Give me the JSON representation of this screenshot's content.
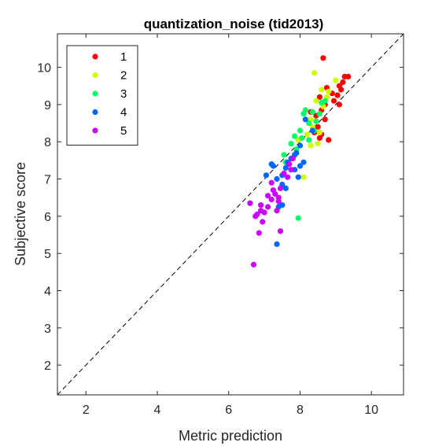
{
  "chart_data": {
    "type": "scatter",
    "title": "quantization_noise (tid2013)",
    "xlabel": "Metric prediction",
    "ylabel": "Subjective score",
    "xlim": [
      1.2,
      10.9
    ],
    "ylim": [
      1.2,
      10.9
    ],
    "xticks": [
      2,
      4,
      6,
      8,
      10
    ],
    "yticks": [
      2,
      3,
      4,
      5,
      6,
      7,
      8,
      9,
      10
    ],
    "grid": false,
    "legend_position": "top-left",
    "reference_line": "y = x (dashed)",
    "series": [
      {
        "name": "1",
        "color": "#ff0000",
        "points": [
          [
            8.65,
            10.25
          ],
          [
            9.25,
            9.75
          ],
          [
            9.35,
            9.75
          ],
          [
            9.2,
            9.6
          ],
          [
            9.1,
            9.5
          ],
          [
            9.15,
            9.4
          ],
          [
            8.75,
            9.45
          ],
          [
            8.9,
            9.3
          ],
          [
            9.05,
            9.25
          ],
          [
            8.55,
            9.2
          ],
          [
            8.95,
            9.1
          ],
          [
            8.7,
            9.0
          ],
          [
            9.1,
            9.0
          ],
          [
            8.6,
            8.85
          ],
          [
            8.3,
            8.8
          ],
          [
            8.45,
            8.7
          ],
          [
            8.7,
            8.6
          ],
          [
            8.5,
            8.4
          ],
          [
            8.4,
            8.25
          ],
          [
            8.55,
            8.1
          ],
          [
            8.8,
            8.05
          ],
          [
            8.6,
            8.2
          ]
        ]
      },
      {
        "name": "2",
        "color": "#ccff00",
        "points": [
          [
            8.4,
            9.85
          ],
          [
            9.0,
            9.65
          ],
          [
            8.6,
            9.4
          ],
          [
            8.8,
            9.35
          ],
          [
            8.45,
            9.1
          ],
          [
            8.75,
            9.2
          ],
          [
            8.3,
            8.6
          ],
          [
            8.35,
            8.4
          ],
          [
            8.2,
            8.2
          ],
          [
            8.5,
            7.95
          ],
          [
            8.3,
            7.9
          ],
          [
            7.95,
            8.05
          ],
          [
            8.1,
            7.05
          ],
          [
            8.55,
            8.25
          ],
          [
            8.65,
            8.95
          ]
        ]
      },
      {
        "name": "3",
        "color": "#00ff66",
        "points": [
          [
            8.6,
            9.05
          ],
          [
            8.7,
            9.1
          ],
          [
            8.55,
            8.75
          ],
          [
            8.1,
            8.75
          ],
          [
            8.45,
            8.55
          ],
          [
            8.25,
            8.5
          ],
          [
            8.0,
            8.3
          ],
          [
            7.85,
            8.15
          ],
          [
            8.25,
            8.05
          ],
          [
            8.4,
            8.3
          ],
          [
            8.05,
            8.1
          ],
          [
            7.75,
            7.95
          ],
          [
            7.9,
            7.8
          ],
          [
            7.55,
            7.65
          ],
          [
            7.7,
            7.4
          ],
          [
            7.6,
            7.45
          ],
          [
            7.95,
            5.95
          ],
          [
            8.15,
            8.85
          ],
          [
            8.35,
            8.8
          ]
        ]
      },
      {
        "name": "4",
        "color": "#0066ff",
        "points": [
          [
            8.15,
            8.6
          ],
          [
            8.35,
            8.3
          ],
          [
            8.0,
            7.9
          ],
          [
            7.85,
            7.65
          ],
          [
            7.75,
            7.55
          ],
          [
            7.9,
            7.7
          ],
          [
            7.65,
            7.45
          ],
          [
            7.6,
            7.3
          ],
          [
            8.1,
            7.45
          ],
          [
            8.0,
            7.35
          ],
          [
            7.95,
            7.05
          ],
          [
            7.5,
            7.1
          ],
          [
            7.35,
            7.0
          ],
          [
            7.25,
            7.35
          ],
          [
            7.05,
            7.1
          ],
          [
            7.5,
            6.85
          ],
          [
            7.6,
            6.75
          ],
          [
            7.4,
            6.25
          ],
          [
            7.35,
            5.25
          ],
          [
            7.5,
            6.3
          ],
          [
            7.2,
            7.4
          ],
          [
            7.85,
            7.25
          ]
        ]
      },
      {
        "name": "5",
        "color": "#cc00ff",
        "points": [
          [
            7.8,
            7.55
          ],
          [
            7.7,
            7.4
          ],
          [
            7.55,
            7.15
          ],
          [
            7.45,
            6.75
          ],
          [
            7.2,
            6.9
          ],
          [
            7.25,
            6.7
          ],
          [
            7.1,
            6.55
          ],
          [
            7.3,
            6.6
          ],
          [
            7.2,
            6.45
          ],
          [
            7.4,
            6.4
          ],
          [
            7.1,
            6.25
          ],
          [
            7.35,
            6.15
          ],
          [
            6.9,
            6.3
          ],
          [
            7.0,
            6.1
          ],
          [
            6.6,
            6.35
          ],
          [
            6.8,
            6.05
          ],
          [
            6.95,
            5.85
          ],
          [
            6.75,
            6.0
          ],
          [
            6.85,
            5.55
          ],
          [
            7.45,
            5.6
          ],
          [
            6.7,
            4.7
          ],
          [
            7.75,
            7.25
          ],
          [
            7.65,
            7.05
          ],
          [
            7.4,
            6.5
          ],
          [
            6.9,
            6.15
          ]
        ]
      }
    ]
  }
}
